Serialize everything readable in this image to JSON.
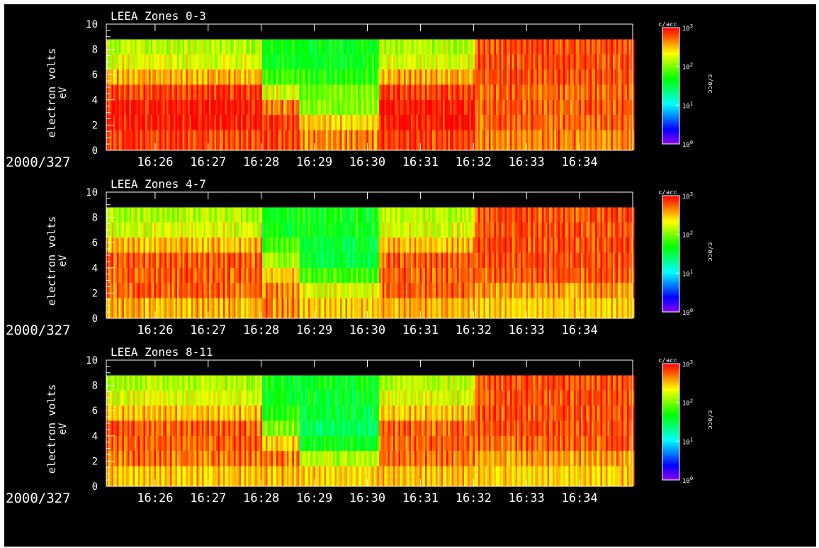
{
  "chart_data": [
    {
      "type": "heatmap",
      "title": "LEEA Zones 0-3",
      "ylabel": "electron volts",
      "yunit": "eV",
      "date_label": "2000/327",
      "x_tick_labels": [
        "16:26",
        "16:27",
        "16:28",
        "16:29",
        "16:30",
        "16:31",
        "16:32",
        "16:33",
        "16:34"
      ],
      "ylim": [
        0,
        10
      ],
      "y_ticks": [
        0,
        2,
        4,
        6,
        8,
        10
      ],
      "time_range_minutes": [
        25.08,
        35.0
      ],
      "energy_bands": [
        0,
        1.6,
        2.8,
        4.0,
        5.2,
        6.4,
        7.6,
        8.8
      ],
      "segments": [
        {
          "t_start": 25.08,
          "t_end": 28.0,
          "log_values": [
            2.8,
            2.9,
            2.9,
            2.8,
            2.5,
            2.2,
            2.1
          ]
        },
        {
          "t_start": 28.0,
          "t_end": 28.7,
          "log_values": [
            2.8,
            2.8,
            2.6,
            2.2,
            1.8,
            1.6,
            1.6
          ]
        },
        {
          "t_start": 28.7,
          "t_end": 30.2,
          "log_values": [
            2.6,
            2.4,
            2.0,
            1.9,
            1.7,
            1.6,
            1.6
          ]
        },
        {
          "t_start": 30.2,
          "t_end": 32.0,
          "log_values": [
            2.8,
            2.9,
            2.9,
            2.8,
            2.5,
            2.2,
            2.1
          ]
        },
        {
          "t_start": 32.0,
          "t_end": 35.0,
          "log_values": [
            2.6,
            2.7,
            2.7,
            2.7,
            2.75,
            2.75,
            2.75
          ]
        }
      ],
      "colorbar": {
        "label": "c/acc",
        "ticks": [
          "10^3",
          "10^2",
          "10^1",
          "10^0"
        ],
        "log_range": [
          0,
          3
        ]
      }
    },
    {
      "type": "heatmap",
      "title": "LEEA Zones 4-7",
      "ylabel": "electron volts",
      "yunit": "eV",
      "date_label": "2000/327",
      "x_tick_labels": [
        "16:26",
        "16:27",
        "16:28",
        "16:29",
        "16:30",
        "16:31",
        "16:32",
        "16:33",
        "16:34"
      ],
      "ylim": [
        0,
        10
      ],
      "y_ticks": [
        0,
        2,
        4,
        6,
        8,
        10
      ],
      "time_range_minutes": [
        25.08,
        35.0
      ],
      "energy_bands": [
        0,
        1.6,
        2.8,
        4.0,
        5.2,
        6.4,
        7.6,
        8.8
      ],
      "segments": [
        {
          "t_start": 25.08,
          "t_end": 28.0,
          "log_values": [
            2.5,
            2.7,
            2.7,
            2.7,
            2.45,
            2.2,
            2.1
          ]
        },
        {
          "t_start": 28.0,
          "t_end": 28.7,
          "log_values": [
            2.6,
            2.6,
            2.4,
            2.1,
            1.8,
            1.6,
            1.6
          ]
        },
        {
          "t_start": 28.7,
          "t_end": 30.2,
          "log_values": [
            2.4,
            2.2,
            1.8,
            1.5,
            1.5,
            1.6,
            1.6
          ]
        },
        {
          "t_start": 30.2,
          "t_end": 32.0,
          "log_values": [
            2.5,
            2.7,
            2.7,
            2.7,
            2.45,
            2.2,
            2.1
          ]
        },
        {
          "t_start": 32.0,
          "t_end": 35.0,
          "log_values": [
            2.4,
            2.55,
            2.7,
            2.75,
            2.75,
            2.75,
            2.75
          ]
        }
      ],
      "colorbar": {
        "label": "c/acc",
        "ticks": [
          "10^3",
          "10^2",
          "10^1",
          "10^0"
        ],
        "log_range": [
          0,
          3
        ]
      }
    },
    {
      "type": "heatmap",
      "title": "LEEA Zones 8-11",
      "ylabel": "electron volts",
      "yunit": "eV",
      "date_label": "2000/327",
      "x_tick_labels": [
        "16:26",
        "16:27",
        "16:28",
        "16:29",
        "16:30",
        "16:31",
        "16:32",
        "16:33",
        "16:34"
      ],
      "ylim": [
        0,
        10
      ],
      "y_ticks": [
        0,
        2,
        4,
        6,
        8,
        10
      ],
      "time_range_minutes": [
        25.08,
        35.0
      ],
      "energy_bands": [
        0,
        1.6,
        2.8,
        4.0,
        5.2,
        6.4,
        7.6,
        8.8
      ],
      "segments": [
        {
          "t_start": 25.08,
          "t_end": 28.0,
          "log_values": [
            2.45,
            2.65,
            2.7,
            2.7,
            2.45,
            2.2,
            2.1
          ]
        },
        {
          "t_start": 28.0,
          "t_end": 28.7,
          "log_values": [
            2.5,
            2.6,
            2.4,
            2.0,
            1.7,
            1.6,
            1.6
          ]
        },
        {
          "t_start": 28.7,
          "t_end": 30.2,
          "log_values": [
            2.4,
            2.1,
            1.6,
            1.4,
            1.5,
            1.55,
            1.6
          ]
        },
        {
          "t_start": 30.2,
          "t_end": 32.0,
          "log_values": [
            2.45,
            2.65,
            2.7,
            2.7,
            2.45,
            2.2,
            2.1
          ]
        },
        {
          "t_start": 32.0,
          "t_end": 35.0,
          "log_values": [
            2.4,
            2.55,
            2.7,
            2.75,
            2.75,
            2.75,
            2.75
          ]
        }
      ],
      "colorbar": {
        "label": "c/acc",
        "ticks": [
          "10^3",
          "10^2",
          "10^1",
          "10^0"
        ],
        "log_range": [
          0,
          3
        ]
      }
    }
  ]
}
